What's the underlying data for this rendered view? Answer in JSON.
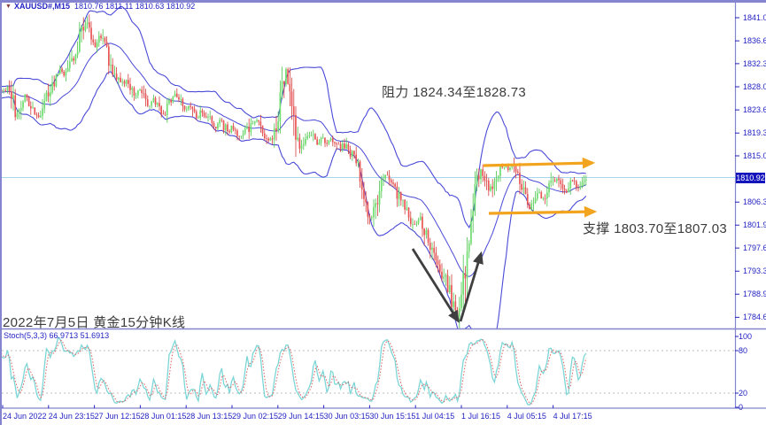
{
  "header": {
    "symbol": "XAUUSD#,M15",
    "ohlc": "1810.76 1811.11 1810.63 1810.92",
    "dropdown_icon": "symbol-dropdown"
  },
  "annotations": {
    "resistance": "阻力 1824.34至1828.73",
    "support": "支撑 1803.70至1807.03",
    "caption": "2022年7月5日 黄金15分钟K线"
  },
  "stoch": {
    "label": "Stoch(5,3,3)",
    "values": "66.9713 51.6913"
  },
  "colors": {
    "axis_text": "#2323c3",
    "frame": "#8484cf",
    "band_blue": "#4a4ad8",
    "candle_up": "#6ede6e",
    "candle_up_stroke": "#4cc24c",
    "candle_down": "#ea5555",
    "candle_down_stroke": "#d43c3c",
    "arrow_orange": "#f2a41f",
    "arrow_dark": "#3f3f3f",
    "stoch_main": "#7cd6d6",
    "stoch_signal": "#e06060",
    "dotted_level": "#bdbdbd",
    "price_line": "#a6d6ee",
    "badge_bg": "#1414bd"
  },
  "chart_data": {
    "type": "candlestick",
    "title": "XAUUSD#,M15 gold 15-minute chart with Bollinger Bands and Stochastic(5,3,3)",
    "price_axis": {
      "labels": [
        "1841.00",
        "1836.65",
        "1832.35",
        "1828.00",
        "1823.65",
        "1819.30",
        "1815.00",
        "1806.30",
        "1801.95",
        "1797.65",
        "1793.30",
        "1788.95",
        "1784.60"
      ],
      "current": "1810.92",
      "ylim": [
        1782.5,
        1842.8
      ]
    },
    "time_axis": {
      "labels": [
        "24 Jun 2022",
        "24 Jun 23:15",
        "27 Jun 12:15",
        "28 Jun 01:15",
        "28 Jun 13:15",
        "29 Jun 02:15",
        "29 Jun 14:15",
        "30 Jun 03:15",
        "30 Jun 15:15",
        "1 Jul 04:15",
        "1 Jul 16:15",
        "4 Jul 05:15",
        "4 Jul 17:15"
      ]
    },
    "stoch_axis": {
      "labels": [
        "100",
        "80",
        "20",
        "0"
      ],
      "dotted_levels": [
        80,
        20
      ]
    },
    "levels": {
      "resistance_zone": [
        1824.34,
        1828.73
      ],
      "support_zone": [
        1803.7,
        1807.03
      ]
    },
    "close_anchors": {
      "x0": -62,
      "dx": 5,
      "values": [
        1825.5,
        1826.5,
        1825.8,
        1827.0,
        1826.2,
        1827.6,
        1826.8,
        1828.0,
        1827.0,
        1826.2,
        1827.4,
        1826.6,
        1827.8,
        1827.0,
        1828.0,
        1826.5,
        1822.5,
        1824.0,
        1826.0,
        1825.0,
        1823.5,
        1822.5,
        1824.0,
        1826.0,
        1828.0,
        1830.0,
        1831.0,
        1830.0,
        1832.0,
        1834.0,
        1836.0,
        1838.5,
        1840.0,
        1837.0,
        1835.5,
        1837.5,
        1836.0,
        1833.0,
        1831.0,
        1830.0,
        1828.5,
        1829.5,
        1828.0,
        1826.5,
        1827.5,
        1826.0,
        1824.5,
        1825.5,
        1824.0,
        1822.5,
        1824.0,
        1825.5,
        1826.5,
        1825.0,
        1823.5,
        1824.5,
        1823.0,
        1822.0,
        1823.5,
        1822.5,
        1821.5,
        1820.5,
        1821.5,
        1820.5,
        1819.5,
        1820.5,
        1819.5,
        1818.5,
        1819.5,
        1821.0,
        1822.0,
        1820.5,
        1819.0,
        1818.0,
        1819.0,
        1821.0,
        1826.0,
        1831.0,
        1827.0,
        1820.0,
        1816.5,
        1818.0,
        1819.5,
        1818.5,
        1817.5,
        1818.5,
        1817.5,
        1818.5,
        1817.5,
        1816.5,
        1817.0,
        1816.0,
        1815.0,
        1813.5,
        1811.0,
        1806.5,
        1802.5,
        1805.5,
        1808.5,
        1810.5,
        1811.5,
        1810.0,
        1808.0,
        1806.5,
        1805.0,
        1803.5,
        1802.0,
        1803.5,
        1801.5,
        1799.5,
        1797.5,
        1795.5,
        1793.5,
        1791.5,
        1789.0,
        1786.5,
        1784.5,
        1790.0,
        1797.0,
        1804.0,
        1809.0,
        1812.5,
        1810.5,
        1808.5,
        1810.0,
        1812.0,
        1813.5,
        1812.0,
        1813.0,
        1811.5,
        1809.5,
        1807.5,
        1805.5,
        1806.5,
        1808.0,
        1807.0,
        1808.5,
        1810.0,
        1811.0,
        1809.5,
        1808.0,
        1809.5,
        1810.5,
        1809.0,
        1810.0,
        1810.9
      ]
    },
    "arrows": {
      "resistance_arrow": {
        "from": [
          546,
          187
        ],
        "to": [
          669,
          184
        ],
        "color": "orange"
      },
      "support_arrow": {
        "from": [
          552,
          241
        ],
        "to": [
          671,
          239
        ],
        "color": "orange"
      },
      "down_arrow": {
        "from": [
          466,
          281
        ],
        "to": [
          517,
          362
        ],
        "color": "dark"
      },
      "up_arrow": {
        "from": [
          520,
          363
        ],
        "to": [
          543,
          287
        ],
        "color": "dark"
      }
    }
  }
}
